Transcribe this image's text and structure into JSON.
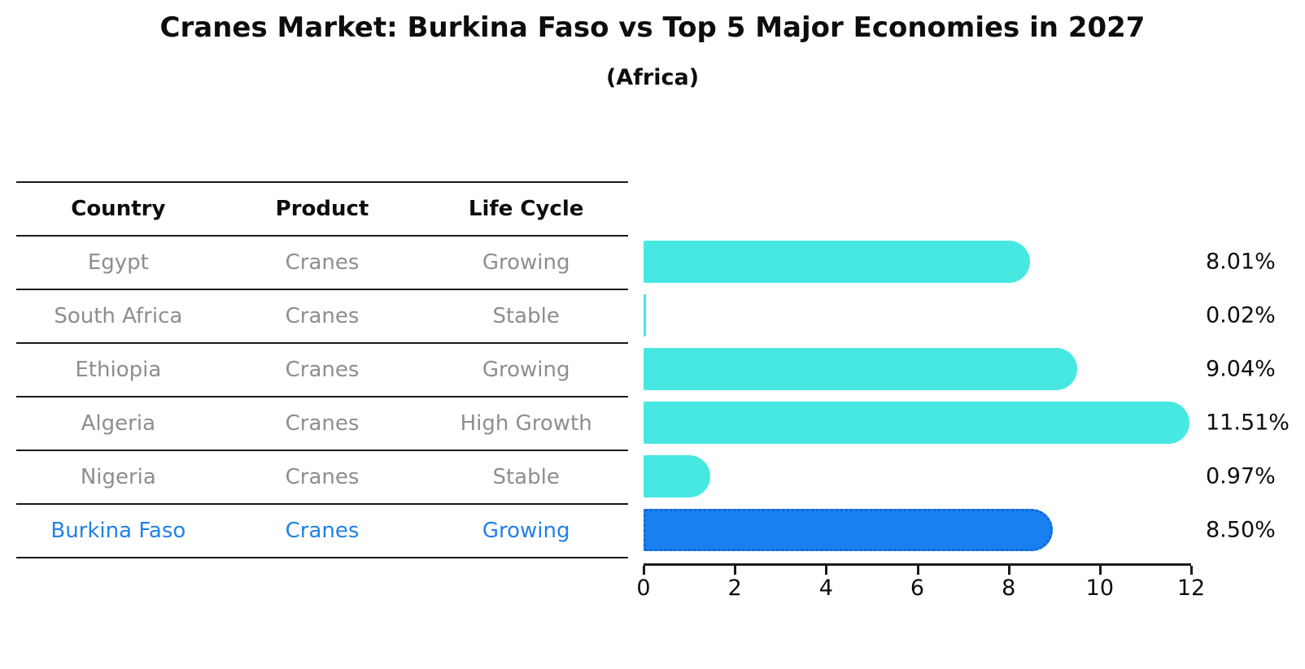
{
  "title": "Cranes Market: Burkina Faso vs Top 5 Major Economies in 2027",
  "subtitle": "(Africa)",
  "table": {
    "headers": [
      "Country",
      "Product",
      "Life Cycle"
    ],
    "rows": [
      {
        "country": "Egypt",
        "product": "Cranes",
        "life_cycle": "Growing",
        "highlight": false
      },
      {
        "country": "South Africa",
        "product": "Cranes",
        "life_cycle": "Stable",
        "highlight": false
      },
      {
        "country": "Ethiopia",
        "product": "Cranes",
        "life_cycle": "Growing",
        "highlight": false
      },
      {
        "country": "Algeria",
        "product": "Cranes",
        "life_cycle": "High Growth",
        "highlight": false
      },
      {
        "country": "Nigeria",
        "product": "Cranes",
        "life_cycle": "Stable",
        "highlight": false
      },
      {
        "country": "Burkina Faso",
        "product": "Cranes",
        "life_cycle": "Growing",
        "highlight": true
      }
    ]
  },
  "chart_data": {
    "type": "bar",
    "orientation": "horizontal",
    "title": "Cranes Market: Burkina Faso vs Top 5 Major Economies in 2027",
    "subtitle": "(Africa)",
    "categories": [
      "Egypt",
      "South Africa",
      "Ethiopia",
      "Algeria",
      "Nigeria",
      "Burkina Faso"
    ],
    "values": [
      8.01,
      0.02,
      9.04,
      11.51,
      0.97,
      8.5
    ],
    "value_labels": [
      "8.01%",
      "0.02%",
      "9.04%",
      "11.51%",
      "0.97%",
      "8.50%"
    ],
    "xlabel": "",
    "ylabel": "",
    "xlim": [
      0,
      12
    ],
    "x_ticks": [
      0,
      2,
      4,
      6,
      8,
      10,
      12
    ],
    "grid": false,
    "legend": false,
    "bar_color": "#47e8e2",
    "highlight_color": "#1a80f0",
    "highlight_index": 5,
    "highlight_text_color": "#2181e8"
  }
}
